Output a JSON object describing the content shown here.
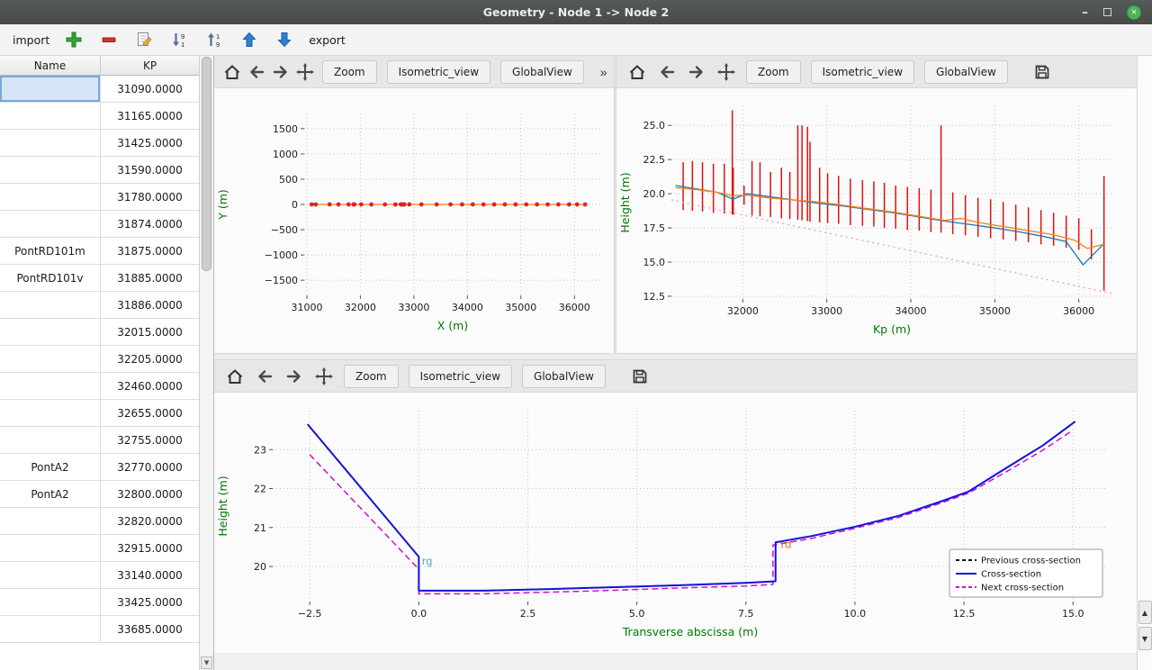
{
  "window": {
    "title": "Geometry - Node 1 -> Node 2",
    "minimize_glyph": "–",
    "close_glyph": "✕"
  },
  "toolbar": {
    "import_label": "import",
    "export_label": "export",
    "icons": [
      "add-icon",
      "remove-icon",
      "edit-icon",
      "sort-descending-icon",
      "sort-ascending-icon",
      "move-up-icon",
      "move-down-icon"
    ]
  },
  "scrollbar": {
    "up_glyph": "▲",
    "down_glyph": "▼"
  },
  "table": {
    "columns": [
      "Name",
      "KP"
    ],
    "selected_row": 0,
    "rows": [
      {
        "name": "",
        "kp": "31090.0000"
      },
      {
        "name": "",
        "kp": "31165.0000"
      },
      {
        "name": "",
        "kp": "31425.0000"
      },
      {
        "name": "",
        "kp": "31590.0000"
      },
      {
        "name": "",
        "kp": "31780.0000"
      },
      {
        "name": "",
        "kp": "31874.0000"
      },
      {
        "name": "PontRD101m",
        "kp": "31875.0000"
      },
      {
        "name": "PontRD101v",
        "kp": "31885.0000"
      },
      {
        "name": "",
        "kp": "31886.0000"
      },
      {
        "name": "",
        "kp": "32015.0000"
      },
      {
        "name": "",
        "kp": "32205.0000"
      },
      {
        "name": "",
        "kp": "32460.0000"
      },
      {
        "name": "",
        "kp": "32655.0000"
      },
      {
        "name": "",
        "kp": "32755.0000"
      },
      {
        "name": "PontA2",
        "kp": "32770.0000"
      },
      {
        "name": "PontA2",
        "kp": "32800.0000"
      },
      {
        "name": "",
        "kp": "32820.0000"
      },
      {
        "name": "",
        "kp": "32915.0000"
      },
      {
        "name": "",
        "kp": "33140.0000"
      },
      {
        "name": "",
        "kp": "33425.0000"
      },
      {
        "name": "",
        "kp": "33685.0000"
      }
    ]
  },
  "plot_toolbar": {
    "zoom": "Zoom",
    "isometric": "Isometric_view",
    "global_view": "GlobalView",
    "overflow": "»"
  },
  "chart_data": [
    {
      "name": "plan-view",
      "type": "scatter",
      "xlabel": "X (m)",
      "ylabel": "Y (m)",
      "xlim": [
        30950,
        36500
      ],
      "ylim": [
        -1800,
        1800
      ],
      "xticks": [
        31000,
        32000,
        33000,
        34000,
        35000,
        36000
      ],
      "xtick_labels": [
        "31000",
        "32000",
        "33000",
        "34000",
        "35000",
        "36000"
      ],
      "yticks": [
        -1500,
        -1000,
        -500,
        0,
        500,
        1000,
        1500
      ],
      "ytick_labels": [
        "−1500",
        "−1000",
        "−500",
        "0",
        "500",
        "1000",
        "1500"
      ],
      "series": [
        {
          "name": "river-axis",
          "type": "line",
          "color": "#ff7f0e",
          "width": 1.2,
          "yconst": 0,
          "x": [
            31090,
            31165,
            31425,
            31590,
            31780,
            31874,
            31875,
            31885,
            31886,
            32015,
            32205,
            32460,
            32655,
            32755,
            32770,
            32800,
            32820,
            32915,
            33140,
            33425,
            33685,
            33900,
            34100,
            34300,
            34500,
            34700,
            34900,
            35100,
            35300,
            35500,
            35700,
            35900,
            36050,
            36200
          ]
        },
        {
          "name": "cross-section-points",
          "type": "scatter",
          "color": "#d62728",
          "size": 2.4,
          "yconst": 0,
          "x": [
            31090,
            31165,
            31425,
            31590,
            31780,
            31874,
            31875,
            31885,
            31886,
            32015,
            32205,
            32460,
            32655,
            32755,
            32770,
            32800,
            32820,
            32915,
            33140,
            33425,
            33685,
            33900,
            34100,
            34300,
            34500,
            34700,
            34900,
            35100,
            35300,
            35500,
            35700,
            35900,
            36050,
            36200
          ]
        }
      ]
    },
    {
      "name": "longitudinal-profile",
      "type": "line",
      "xlabel": "Kp (m)",
      "ylabel": "Height (m)",
      "xlim": [
        31150,
        36400
      ],
      "ylim": [
        12.3,
        26.4
      ],
      "xticks": [
        32000,
        33000,
        34000,
        35000,
        36000
      ],
      "xtick_labels": [
        "32000",
        "33000",
        "34000",
        "35000",
        "36000"
      ],
      "yticks": [
        12.5,
        15.0,
        17.5,
        20.0,
        22.5,
        25.0
      ],
      "ytick_labels": [
        "12.5",
        "15.0",
        "17.5",
        "20.0",
        "22.5",
        "25.0"
      ],
      "series": [
        {
          "name": "cross-section-markers",
          "type": "vlines",
          "color": "#dd1111",
          "width": 1.5,
          "segments": [
            [
              31290,
              18.8,
              22.3
            ],
            [
              31400,
              18.75,
              22.4
            ],
            [
              31520,
              18.7,
              22.3
            ],
            [
              31650,
              18.6,
              22.2
            ],
            [
              31780,
              18.55,
              22.2
            ],
            [
              31875,
              18.5,
              26.1
            ],
            [
              31886,
              18.45,
              21.9
            ],
            [
              32015,
              19.2,
              20.6
            ],
            [
              32110,
              18.4,
              22.4
            ],
            [
              32205,
              18.35,
              22.3
            ],
            [
              32330,
              18.3,
              21.6
            ],
            [
              32460,
              18.2,
              21.9
            ],
            [
              32560,
              18.15,
              21.6
            ],
            [
              32655,
              18.1,
              25.0
            ],
            [
              32705,
              18.05,
              25.0
            ],
            [
              32770,
              18.0,
              24.9
            ],
            [
              32800,
              17.95,
              23.8
            ],
            [
              32915,
              17.9,
              21.9
            ],
            [
              33010,
              17.85,
              21.5
            ],
            [
              33140,
              17.8,
              21.3
            ],
            [
              33280,
              17.7,
              21.1
            ],
            [
              33425,
              17.65,
              21.0
            ],
            [
              33560,
              17.6,
              20.9
            ],
            [
              33685,
              17.5,
              20.8
            ],
            [
              33820,
              17.45,
              20.6
            ],
            [
              33960,
              17.35,
              20.5
            ],
            [
              34100,
              17.3,
              20.4
            ],
            [
              34240,
              17.2,
              20.3
            ],
            [
              34360,
              17.15,
              25.0
            ],
            [
              34500,
              17.05,
              20.1
            ],
            [
              34650,
              16.95,
              19.9
            ],
            [
              34800,
              16.85,
              19.7
            ],
            [
              34950,
              16.75,
              19.6
            ],
            [
              35100,
              16.65,
              19.4
            ],
            [
              35250,
              16.55,
              19.2
            ],
            [
              35400,
              16.45,
              19.0
            ],
            [
              35550,
              16.3,
              18.8
            ],
            [
              35700,
              16.2,
              18.6
            ],
            [
              35850,
              16.05,
              18.4
            ],
            [
              36000,
              15.9,
              18.2
            ],
            [
              36150,
              15.2,
              17.4
            ],
            [
              36300,
              12.9,
              21.3
            ]
          ]
        },
        {
          "name": "left-bank-line",
          "type": "line",
          "color": "#1f77b4",
          "width": 1.3,
          "x": [
            31200,
            31450,
            31700,
            31880,
            32050,
            32300,
            32600,
            32900,
            33200,
            33500,
            33800,
            34100,
            34400,
            34700,
            35000,
            35300,
            35600,
            35850,
            36050,
            36300
          ],
          "y": [
            20.6,
            20.35,
            20.1,
            19.6,
            20.0,
            19.8,
            19.55,
            19.3,
            19.1,
            18.85,
            18.6,
            18.3,
            18.0,
            17.75,
            17.5,
            17.2,
            16.85,
            16.5,
            14.8,
            16.35
          ]
        },
        {
          "name": "right-bank-line",
          "type": "line",
          "color": "#ff7f0e",
          "width": 1.3,
          "x": [
            31200,
            31450,
            31700,
            31880,
            32050,
            32300,
            32600,
            32900,
            33200,
            33500,
            33800,
            34100,
            34400,
            34600,
            34800,
            35100,
            35400,
            35700,
            35950,
            36100,
            36300
          ],
          "y": [
            20.45,
            20.3,
            20.1,
            19.85,
            19.9,
            19.7,
            19.55,
            19.4,
            19.15,
            18.9,
            18.65,
            18.35,
            18.05,
            18.2,
            17.9,
            17.6,
            17.3,
            17.0,
            16.6,
            16.0,
            16.3
          ]
        },
        {
          "name": "reference-line",
          "type": "line",
          "color": "#f2a8b4",
          "width": 1.5,
          "dash": "2,4",
          "x": [
            31150,
            36400
          ],
          "y": [
            19.55,
            12.7
          ]
        }
      ]
    },
    {
      "name": "cross-section",
      "type": "line",
      "xlabel": "Transverse abscissa (m)",
      "ylabel": "Height (m)",
      "xlim": [
        -3.35,
        15.8
      ],
      "ylim": [
        19.1,
        24.0
      ],
      "xticks": [
        -2.5,
        0.0,
        2.5,
        5.0,
        7.5,
        10.0,
        12.5,
        15.0
      ],
      "xtick_labels": [
        "−2.5",
        "0.0",
        "2.5",
        "5.0",
        "7.5",
        "10.0",
        "12.5",
        "15.0"
      ],
      "yticks": [
        20,
        21,
        22,
        23
      ],
      "ytick_labels": [
        "20",
        "21",
        "22",
        "23"
      ],
      "series": [
        {
          "name": "previous-cross-section",
          "type": "line",
          "color": "#111111",
          "width": 1.6,
          "dash": "6,4",
          "x": [
            -2.55,
            0.0,
            0.0,
            1.5,
            3.0,
            4.5,
            6.0,
            7.5,
            8.18,
            8.18,
            9.0,
            10.0,
            11.0,
            12.0,
            12.6,
            13.5,
            14.3,
            15.05
          ],
          "y": [
            23.65,
            20.25,
            19.38,
            19.38,
            19.42,
            19.47,
            19.52,
            19.58,
            19.62,
            20.62,
            20.78,
            21.02,
            21.3,
            21.68,
            21.92,
            22.55,
            23.1,
            23.72
          ]
        },
        {
          "name": "next-cross-section",
          "type": "line",
          "color": "#cf10cf",
          "width": 1.5,
          "dash": "7,4",
          "x": [
            -2.5,
            0.0,
            0.0,
            1.5,
            3.0,
            4.5,
            6.0,
            7.5,
            8.12,
            8.12,
            9.0,
            10.0,
            11.0,
            12.0,
            12.6,
            13.5,
            14.3,
            15.0
          ],
          "y": [
            22.87,
            19.93,
            19.3,
            19.3,
            19.34,
            19.39,
            19.45,
            19.5,
            19.54,
            20.55,
            20.72,
            20.98,
            21.26,
            21.64,
            21.88,
            22.45,
            22.98,
            23.5
          ]
        },
        {
          "name": "cross-section-line",
          "type": "line",
          "color": "#1414dc",
          "width": 2,
          "x": [
            -2.55,
            0.0,
            0.0,
            1.5,
            3.0,
            4.5,
            6.0,
            7.5,
            8.18,
            8.18,
            9.0,
            10.0,
            11.0,
            12.0,
            12.6,
            13.5,
            14.3,
            15.05
          ],
          "y": [
            23.65,
            20.25,
            19.38,
            19.38,
            19.42,
            19.47,
            19.52,
            19.58,
            19.62,
            20.62,
            20.78,
            21.02,
            21.3,
            21.68,
            21.92,
            22.55,
            23.1,
            23.72
          ]
        }
      ],
      "annotations": [
        {
          "x": 0.07,
          "y": 20.05,
          "text": "rg",
          "color": "#5b9fd3"
        },
        {
          "x": 8.3,
          "y": 20.48,
          "text": "rd",
          "color": "#e3761c"
        }
      ],
      "legend": {
        "position": "lower right",
        "entries": [
          {
            "label": "Previous cross-section",
            "color": "#111111",
            "dash": "4,3"
          },
          {
            "label": "Cross-section",
            "color": "#1414dc",
            "dash": ""
          },
          {
            "label": "Next cross-section",
            "color": "#cf10cf",
            "dash": "4,3"
          }
        ]
      }
    }
  ]
}
